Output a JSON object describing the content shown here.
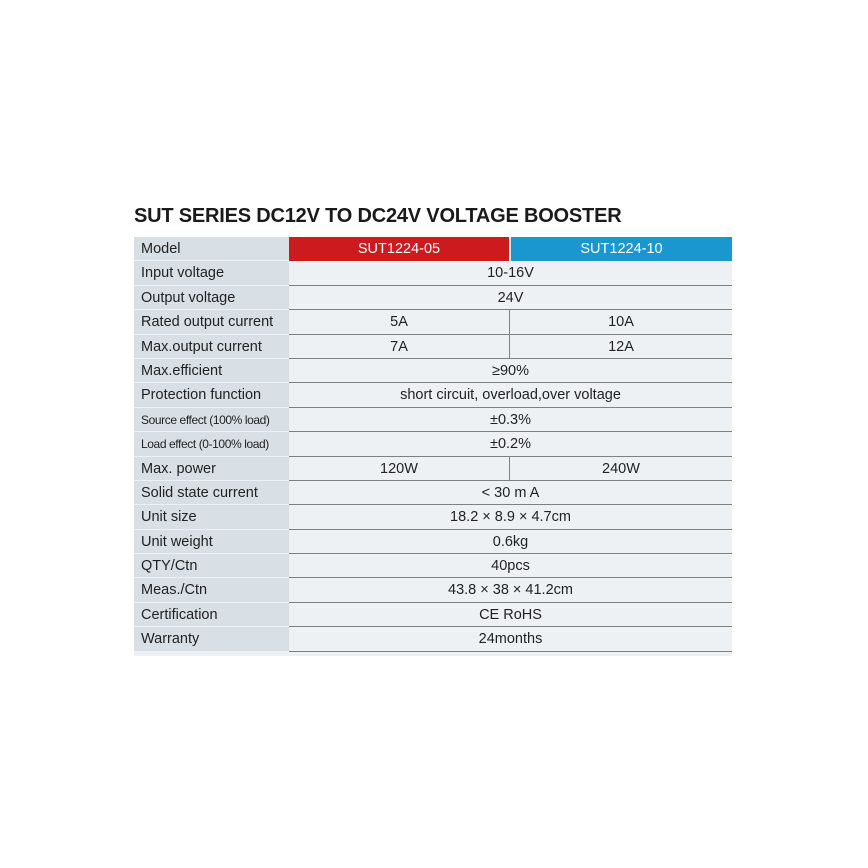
{
  "title": "SUT SERIES DC12V TO DC24V VOLTAGE BOOSTER",
  "colors": {
    "model_a": "#cc1a1f",
    "model_b": "#1a97cf"
  },
  "header": {
    "label": "Model",
    "models": [
      "SUT1224-05",
      "SUT1224-10"
    ]
  },
  "rows": [
    {
      "label": "Input voltage",
      "values": [
        "10-16V"
      ]
    },
    {
      "label": "Output voltage",
      "values": [
        "24V"
      ]
    },
    {
      "label": "Rated output current",
      "values": [
        "5A",
        "10A"
      ]
    },
    {
      "label": "Max.output current",
      "values": [
        "7A",
        "12A"
      ]
    },
    {
      "label": "Max.efficient",
      "values": [
        "≥90%"
      ]
    },
    {
      "label": "Protection function",
      "values": [
        "short circuit, overload,over voltage"
      ]
    },
    {
      "label": "Source effect (100% load)",
      "values": [
        "±0.3%"
      ],
      "small": true
    },
    {
      "label": "Load effect (0-100% load)",
      "values": [
        "±0.2%"
      ],
      "small": true
    },
    {
      "label": "Max. power",
      "values": [
        "120W",
        "240W"
      ]
    },
    {
      "label": "Solid state current",
      "values": [
        "< 30 m A"
      ]
    },
    {
      "label": "Unit size",
      "values": [
        "18.2 × 8.9 × 4.7cm"
      ]
    },
    {
      "label": "Unit weight",
      "values": [
        "0.6kg"
      ]
    },
    {
      "label": "QTY/Ctn",
      "values": [
        "40pcs"
      ]
    },
    {
      "label": "Meas./Ctn",
      "values": [
        "43.8 × 38 × 41.2cm"
      ]
    },
    {
      "label": "Certification",
      "values": [
        "CE RoHS"
      ]
    },
    {
      "label": "Warranty",
      "values": [
        "24months"
      ]
    }
  ]
}
